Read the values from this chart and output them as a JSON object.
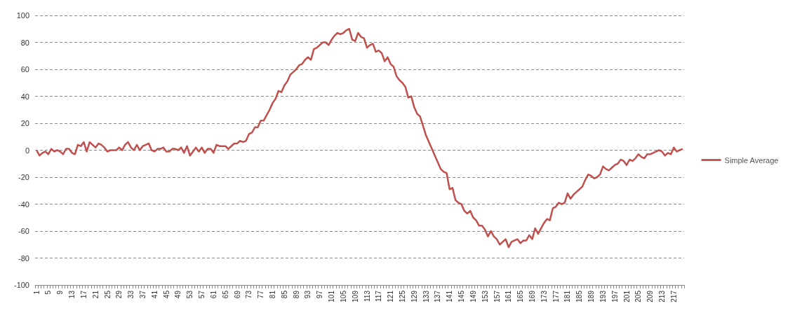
{
  "chart_data": {
    "type": "line",
    "categories": [
      "1",
      null,
      null,
      null,
      "5",
      null,
      null,
      null,
      "9",
      null,
      null,
      null,
      "13",
      null,
      null,
      null,
      "17",
      null,
      null,
      null,
      "21",
      null,
      null,
      null,
      "25",
      null,
      null,
      null,
      "29",
      null,
      null,
      null,
      "33",
      null,
      null,
      null,
      "37",
      null,
      null,
      null,
      "41",
      null,
      null,
      null,
      "45",
      null,
      null,
      null,
      "49",
      null,
      null,
      null,
      "53",
      null,
      null,
      null,
      "57",
      null,
      null,
      null,
      "61",
      null,
      null,
      null,
      "65",
      null,
      null,
      null,
      "69",
      null,
      null,
      null,
      "73",
      null,
      null,
      null,
      "77",
      null,
      null,
      null,
      "81",
      null,
      null,
      null,
      "85",
      null,
      null,
      null,
      "89",
      null,
      null,
      null,
      "93",
      null,
      null,
      null,
      "97",
      null,
      null,
      null,
      "101",
      null,
      null,
      null,
      "105",
      null,
      null,
      null,
      "109",
      null,
      null,
      null,
      "113",
      null,
      null,
      null,
      "117",
      null,
      null,
      null,
      "121",
      null,
      null,
      null,
      "125",
      null,
      null,
      null,
      "129",
      null,
      null,
      null,
      "133",
      null,
      null,
      null,
      "137",
      null,
      null,
      null,
      "141",
      null,
      null,
      null,
      "145",
      null,
      null,
      null,
      "149",
      null,
      null,
      null,
      "153",
      null,
      null,
      null,
      "157",
      null,
      null,
      null,
      "161",
      null,
      null,
      null,
      "165",
      null,
      null,
      null,
      "169",
      null,
      null,
      null,
      "173",
      null,
      null,
      null,
      "177",
      null,
      null,
      null,
      "181",
      null,
      null,
      null,
      "185",
      null,
      null,
      null,
      "189",
      null,
      null,
      null,
      "193",
      null,
      null,
      null,
      "197",
      null,
      null,
      null,
      "201",
      null,
      null,
      null,
      "205",
      null,
      null,
      null,
      "209",
      null,
      null,
      null,
      "213",
      null,
      null,
      null,
      "217",
      null,
      null,
      null
    ],
    "series": [
      {
        "name": "Simple Average",
        "color": "#c0504d",
        "values": [
          0,
          -4,
          -2,
          -1,
          -3,
          1,
          -1,
          0,
          -1,
          -3,
          1,
          1,
          -2,
          -3,
          4,
          3,
          6,
          -1,
          6,
          4,
          2,
          5,
          4,
          2,
          -1,
          0,
          0,
          0,
          2,
          0,
          4,
          6,
          2,
          0,
          4,
          0,
          3,
          4,
          5,
          0,
          -1,
          1,
          1,
          2,
          -1,
          -1,
          1,
          1,
          0,
          2,
          -2,
          3,
          -4,
          -1,
          2,
          -1,
          2,
          -2,
          1,
          1,
          -2,
          4,
          3,
          3,
          3,
          1,
          3,
          5,
          5,
          7,
          6,
          7,
          12,
          13,
          17,
          17,
          22,
          22,
          26,
          30,
          35,
          38,
          44,
          43,
          48,
          51,
          56,
          58,
          60,
          63,
          64,
          67,
          69,
          67,
          75,
          76,
          78,
          80,
          80,
          78,
          82,
          85,
          87,
          86,
          87,
          89,
          90,
          82,
          81,
          87,
          84,
          83,
          76,
          78,
          79,
          73,
          74,
          72,
          66,
          69,
          64,
          62,
          55,
          52,
          50,
          47,
          39,
          40,
          32,
          27,
          25,
          18,
          11,
          6,
          1,
          -4,
          -9,
          -14,
          -16,
          -17,
          -29,
          -28,
          -37,
          -39,
          -40,
          -45,
          -47,
          -45,
          -50,
          -52,
          -56,
          -56,
          -59,
          -64,
          -60,
          -64,
          -66,
          -70,
          -68,
          -66,
          -72,
          -68,
          -67,
          -66,
          -69,
          -67,
          -67,
          -63,
          -66,
          -58,
          -62,
          -58,
          -54,
          -51,
          -52,
          -43,
          -42,
          -39,
          -40,
          -39,
          -32,
          -36,
          -33,
          -31,
          -29,
          -27,
          -22,
          -18,
          -19,
          -21,
          -20,
          -18,
          -12,
          -14,
          -15,
          -13,
          -11,
          -10,
          -7,
          -8,
          -11,
          -7,
          -8,
          -6,
          -3,
          -5,
          -6,
          -3,
          -3,
          -2,
          -1,
          0,
          -1,
          -4,
          -2,
          -3,
          2,
          -1,
          0,
          1
        ]
      }
    ],
    "ylim": [
      -100,
      100
    ],
    "yticks": [
      -100,
      -80,
      -60,
      -40,
      -20,
      0,
      20,
      40,
      60,
      80,
      100
    ],
    "grid": "y",
    "legend": "right",
    "marker": "none",
    "line_style": "solid"
  }
}
